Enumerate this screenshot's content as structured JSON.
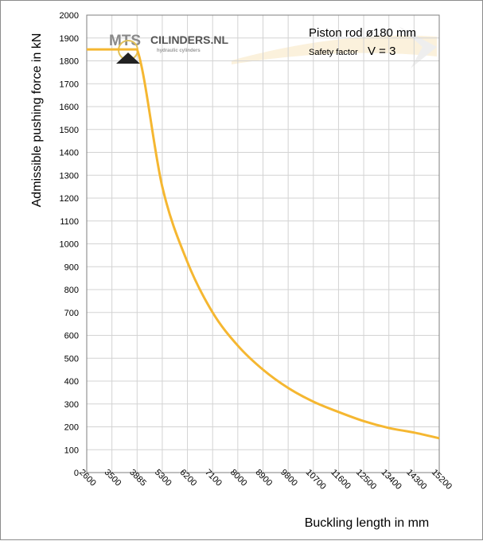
{
  "chart_data": {
    "type": "line",
    "ylabel": "Admissible pushing force in kN",
    "xlabel": "Buckling length in mm",
    "categories": [
      "2600",
      "3500",
      "3885",
      "5300",
      "6200",
      "7100",
      "8000",
      "8900",
      "9800",
      "10700",
      "11600",
      "12500",
      "13400",
      "14300",
      "15200"
    ],
    "y_ticks": [
      0,
      100,
      200,
      300,
      400,
      500,
      600,
      700,
      800,
      900,
      1000,
      1100,
      1200,
      1300,
      1400,
      1500,
      1600,
      1700,
      1800,
      1900,
      2000
    ],
    "ylim": [
      0,
      2000
    ],
    "grid": true,
    "series": [
      {
        "values": [
          1850,
          1850,
          1850,
          1250,
          920,
          700,
          555,
          450,
          370,
          310,
          265,
          225,
          195,
          175,
          150
        ]
      }
    ],
    "annotations": {
      "title_line1": "Piston rod ø180 mm",
      "safety_label": "Safety factor",
      "safety_value": "V = 3"
    },
    "line_color": "#f5b731",
    "grid_color": "#d3d3d3",
    "logo": {
      "left": "MTS",
      "right": "CILINDERS.NL",
      "tagline": "hydraulic cylinders"
    }
  }
}
